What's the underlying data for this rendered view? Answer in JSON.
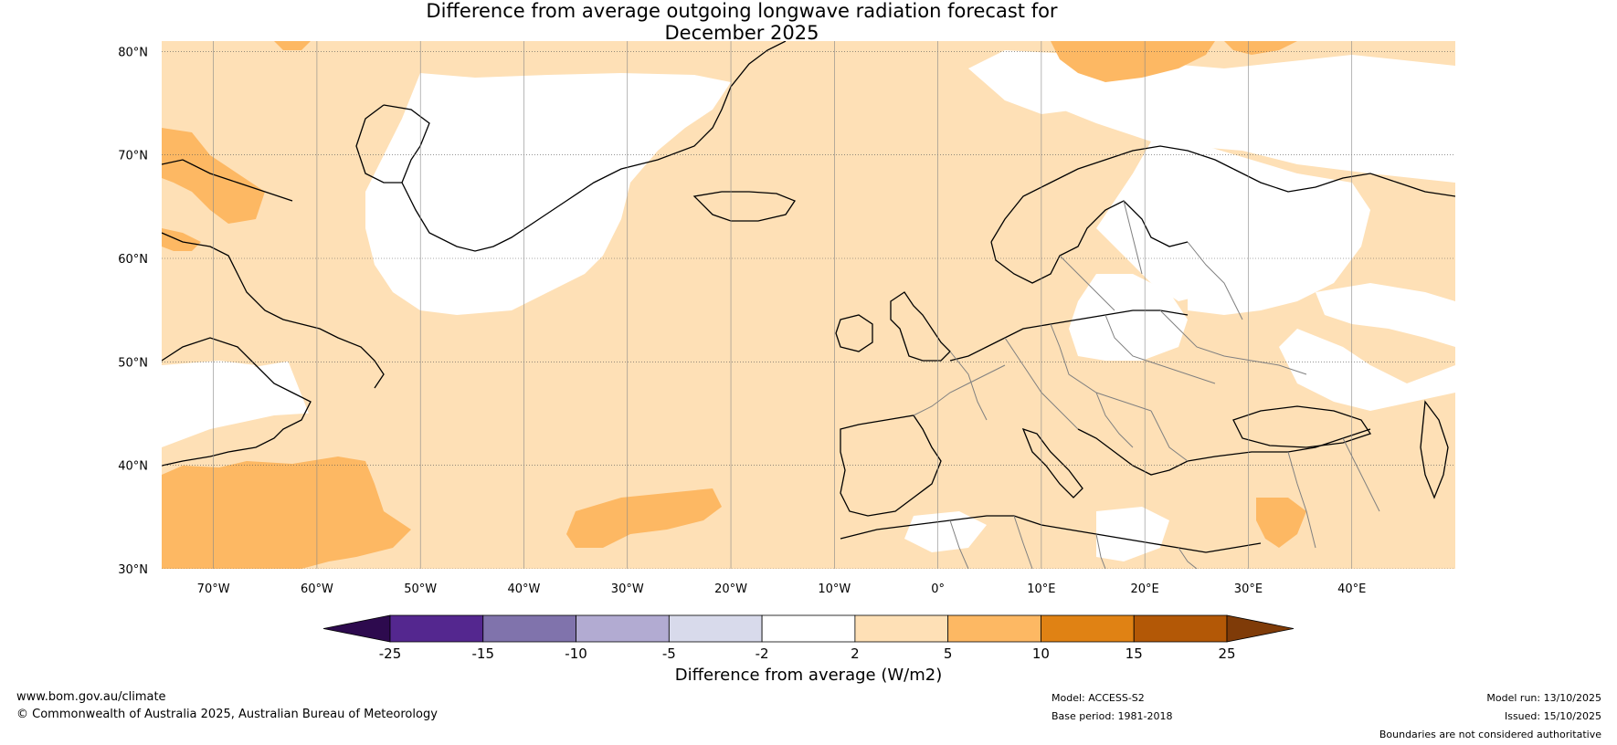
{
  "title": {
    "line1": "Difference from average outgoing longwave radiation forecast for",
    "line2": "December 2025"
  },
  "map": {
    "lat_labels": [
      "80°N",
      "70°N",
      "60°N",
      "50°N",
      "40°N",
      "30°N"
    ],
    "lon_labels": [
      "70°W",
      "60°W",
      "50°W",
      "40°W",
      "30°W",
      "20°W",
      "10°W",
      "0°",
      "10°E",
      "20°E",
      "30°E",
      "40°E"
    ],
    "lat_values": [
      80,
      70,
      60,
      50,
      40,
      30
    ],
    "lon_values": [
      -70,
      -60,
      -50,
      -40,
      -30,
      -20,
      -10,
      0,
      10,
      20,
      30,
      40
    ],
    "extent": {
      "lon_min": -75,
      "lon_max": 50,
      "lat_min": 30,
      "lat_max": 81
    }
  },
  "colorbar": {
    "title": "Difference from average (W/m2)",
    "tick_labels": [
      "-25",
      "-15",
      "-10",
      "-5",
      "-2",
      "2",
      "5",
      "10",
      "15",
      "25"
    ],
    "colors": {
      "under": "#2d0a4e",
      "bins": [
        "#54278f",
        "#8073ac",
        "#b2abd2",
        "#d8daeb",
        "#ffffff",
        "#fee0b6",
        "#fdb863",
        "#e08214",
        "#b35806"
      ],
      "over": "#7f3b08"
    }
  },
  "footer": {
    "website": "www.bom.gov.au/climate",
    "copyright": "© Commonwealth of Australia 2025, Australian Bureau of Meteorology",
    "model": "Model: ACCESS-S2",
    "base_period": "Base period: 1981-2018",
    "model_run": "Model run: 13/10/2025",
    "issued": "Issued: 15/10/2025",
    "disclaimer": "Boundaries are not considered authoritative"
  }
}
